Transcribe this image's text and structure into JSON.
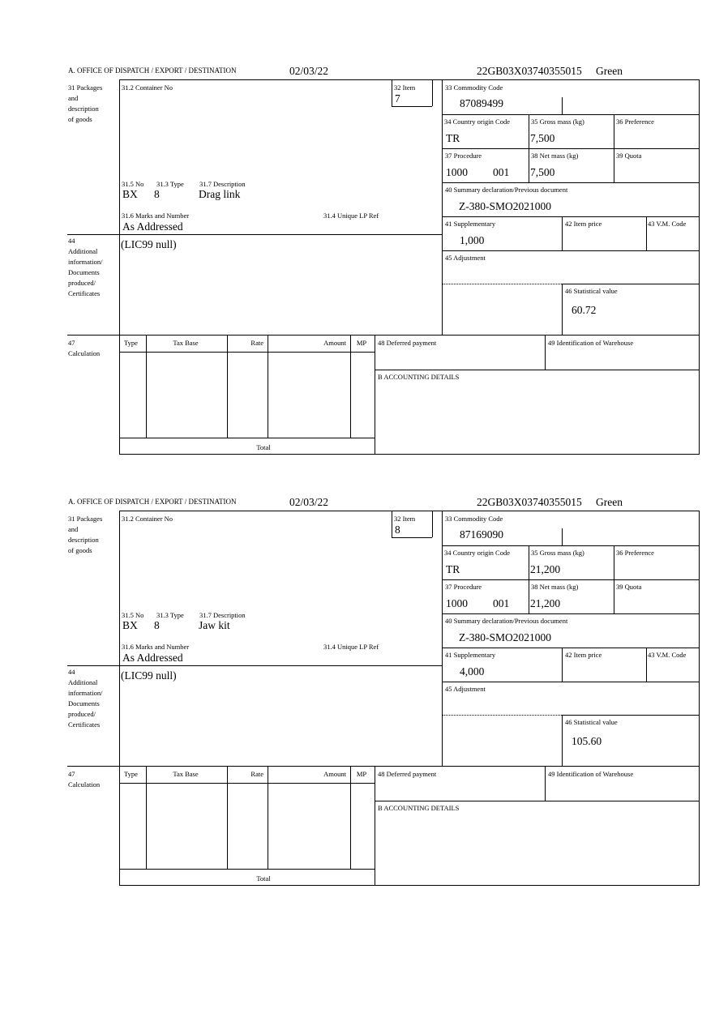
{
  "items": [
    {
      "header": {
        "office_label": "A. OFFICE OF DISPATCH / EXPORT / DESTINATION",
        "date": "02/03/22",
        "reference": "22GB03X03740355015",
        "route": "Green"
      },
      "box31": {
        "label_lines": [
          "31 Packages",
          "and",
          "description",
          "of goods"
        ],
        "container_label": "31.2 Container No",
        "no_label": "31.5 No",
        "type_label": "31.3 Type",
        "desc_label": "31.7 Description",
        "no": "BX",
        "type": "8",
        "description": "Drag link",
        "marks_label": "31.6 Marks and Number",
        "marks": "As Addressed",
        "lp_label": "31.4 Unique LP Ref"
      },
      "box32": {
        "label": "32 Item",
        "value": "7"
      },
      "box33": {
        "label": "33 Commodity Code",
        "value": "87089499"
      },
      "box34": {
        "label": "34 Country origin Code",
        "value": "TR"
      },
      "box35": {
        "label": "35 Gross mass (kg)",
        "value": "7,500"
      },
      "box36": {
        "label": "36 Preference"
      },
      "box37": {
        "label": "37 Procedure",
        "value": "1000",
        "value2": "001"
      },
      "box38": {
        "label": "38 Net mass (kg)",
        "value": "7,500"
      },
      "box39": {
        "label": "39 Quota"
      },
      "box40": {
        "label": "40 Summary declaration/Previous document",
        "value": "Z-380-SMO2021000"
      },
      "box41": {
        "label": "41 Supplementary",
        "value": "1,000"
      },
      "box42": {
        "label": "42 Item price"
      },
      "box43": {
        "label": "43 V.M. Code"
      },
      "box44": {
        "label_lines": [
          "44",
          "Additional",
          "information/",
          "Documents",
          "produced/",
          "Certificates"
        ],
        "value": "(LIC99 null)"
      },
      "box45": {
        "label": "45 Adjustment"
      },
      "box46": {
        "label": "46 Statistical value",
        "value": "60.72"
      },
      "box47": {
        "label_lines": [
          "47",
          "Calculation"
        ],
        "columns": [
          "Type",
          "Tax Base",
          "Rate",
          "Amount",
          "MP"
        ],
        "total_label": "Total"
      },
      "box48": {
        "label": "48 Deferred payment"
      },
      "box49": {
        "label": "49 Identification of Warehouse"
      },
      "boxB": {
        "label": "B ACCOUNTING DETAILS"
      }
    },
    {
      "header": {
        "office_label": "A. OFFICE OF DISPATCH / EXPORT / DESTINATION",
        "date": "02/03/22",
        "reference": "22GB03X03740355015",
        "route": "Green"
      },
      "box31": {
        "label_lines": [
          "31 Packages",
          "and",
          "description",
          "of goods"
        ],
        "container_label": "31.2 Container No",
        "no_label": "31.5 No",
        "type_label": "31.3 Type",
        "desc_label": "31.7 Description",
        "no": "BX",
        "type": "8",
        "description": "Jaw kit",
        "marks_label": "31.6 Marks and Number",
        "marks": "As Addressed",
        "lp_label": "31.4 Unique LP Ref"
      },
      "box32": {
        "label": "32 Item",
        "value": "8"
      },
      "box33": {
        "label": "33 Commodity Code",
        "value": "87169090"
      },
      "box34": {
        "label": "34 Country origin Code",
        "value": "TR"
      },
      "box35": {
        "label": "35 Gross mass (kg)",
        "value": "21,200"
      },
      "box36": {
        "label": "36 Preference"
      },
      "box37": {
        "label": "37 Procedure",
        "value": "1000",
        "value2": "001"
      },
      "box38": {
        "label": "38 Net mass (kg)",
        "value": "21,200"
      },
      "box39": {
        "label": "39 Quota"
      },
      "box40": {
        "label": "40 Summary declaration/Previous document",
        "value": "Z-380-SMO2021000"
      },
      "box41": {
        "label": "41 Supplementary",
        "value": "4,000"
      },
      "box42": {
        "label": "42 Item price"
      },
      "box43": {
        "label": "43 V.M. Code"
      },
      "box44": {
        "label_lines": [
          "44",
          "Additional",
          "information/",
          "Documents",
          "produced/",
          "Certificates"
        ],
        "value": "(LIC99 null)"
      },
      "box45": {
        "label": "45 Adjustment"
      },
      "box46": {
        "label": "46 Statistical value",
        "value": "105.60"
      },
      "box47": {
        "label_lines": [
          "47",
          "Calculation"
        ],
        "columns": [
          "Type",
          "Tax Base",
          "Rate",
          "Amount",
          "MP"
        ],
        "total_label": "Total"
      },
      "box48": {
        "label": "48 Deferred payment"
      },
      "box49": {
        "label": "49 Identification of Warehouse"
      },
      "boxB": {
        "label": "B ACCOUNTING DETAILS"
      }
    }
  ]
}
